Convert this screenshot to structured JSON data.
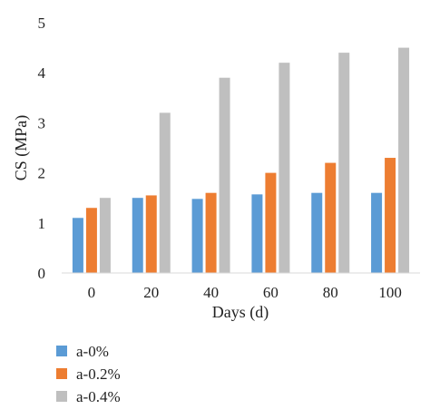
{
  "chart_data": {
    "type": "bar",
    "title": "",
    "xlabel": "Days (d)",
    "ylabel": "CS (MPa)",
    "categories": [
      "0",
      "20",
      "40",
      "60",
      "80",
      "100"
    ],
    "ylim": [
      0,
      5
    ],
    "yticks": [
      0,
      1,
      2,
      3,
      4,
      5
    ],
    "grid": false,
    "legend_position": "bottom-left",
    "series": [
      {
        "name": "a-0%",
        "color": "#5b9bd5",
        "values": [
          1.1,
          1.5,
          1.48,
          1.57,
          1.6,
          1.6
        ]
      },
      {
        "name": "a-0.2%",
        "color": "#ed7d31",
        "values": [
          1.3,
          1.55,
          1.6,
          2.0,
          2.2,
          2.3
        ]
      },
      {
        "name": "a-0.4%",
        "color": "#bfbfbf",
        "values": [
          1.5,
          3.2,
          3.9,
          4.2,
          4.4,
          4.5
        ]
      }
    ]
  }
}
